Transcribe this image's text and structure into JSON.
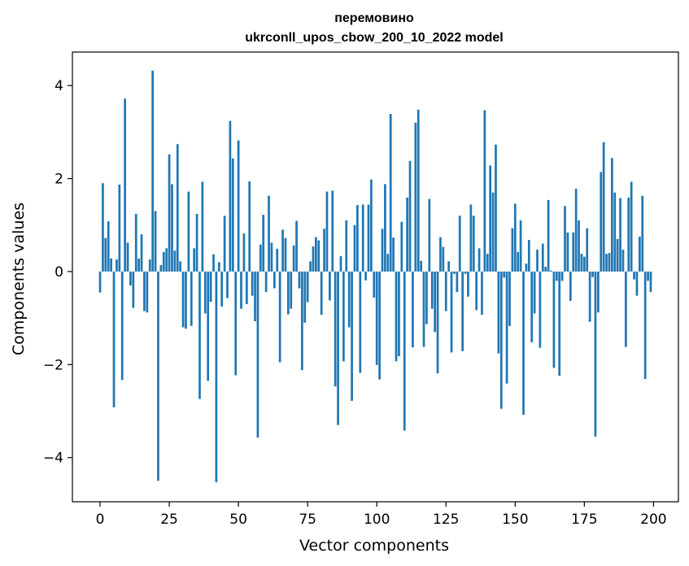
{
  "chart_data": {
    "type": "bar",
    "title": "перемовино",
    "subtitle": "ukrconll_upos_cbow_200_10_2022 model",
    "xlabel": "Vector components",
    "ylabel": "Components values",
    "xlim": [
      -10,
      209
    ],
    "ylim": [
      -4.95,
      4.72
    ],
    "xticks": [
      0,
      25,
      50,
      75,
      100,
      125,
      150,
      175,
      200
    ],
    "yticks": [
      -4,
      -2,
      0,
      2,
      4
    ],
    "xtick_labels": [
      "0",
      "25",
      "50",
      "75",
      "100",
      "125",
      "150",
      "175",
      "200"
    ],
    "ytick_labels": [
      "−4",
      "−2",
      "0",
      "2",
      "4"
    ],
    "bar_color": "#1f77b4",
    "grid": false,
    "x": [
      0,
      1,
      2,
      3,
      4,
      5,
      6,
      7,
      8,
      9,
      10,
      11,
      12,
      13,
      14,
      15,
      16,
      17,
      18,
      19,
      20,
      21,
      22,
      23,
      24,
      25,
      26,
      27,
      28,
      29,
      30,
      31,
      32,
      33,
      34,
      35,
      36,
      37,
      38,
      39,
      40,
      41,
      42,
      43,
      44,
      45,
      46,
      47,
      48,
      49,
      50,
      51,
      52,
      53,
      54,
      55,
      56,
      57,
      58,
      59,
      60,
      61,
      62,
      63,
      64,
      65,
      66,
      67,
      68,
      69,
      70,
      71,
      72,
      73,
      74,
      75,
      76,
      77,
      78,
      79,
      80,
      81,
      82,
      83,
      84,
      85,
      86,
      87,
      88,
      89,
      90,
      91,
      92,
      93,
      94,
      95,
      96,
      97,
      98,
      99,
      100,
      101,
      102,
      103,
      104,
      105,
      106,
      107,
      108,
      109,
      110,
      111,
      112,
      113,
      114,
      115,
      116,
      117,
      118,
      119,
      120,
      121,
      122,
      123,
      124,
      125,
      126,
      127,
      128,
      129,
      130,
      131,
      132,
      133,
      134,
      135,
      136,
      137,
      138,
      139,
      140,
      141,
      142,
      143,
      144,
      145,
      146,
      147,
      148,
      149,
      150,
      151,
      152,
      153,
      154,
      155,
      156,
      157,
      158,
      159,
      160,
      161,
      162,
      163,
      164,
      165,
      166,
      167,
      168,
      169,
      170,
      171,
      172,
      173,
      174,
      175,
      176,
      177,
      178,
      179,
      180,
      181,
      182,
      183,
      184,
      185,
      186,
      187,
      188,
      189,
      190,
      191,
      192,
      193,
      194,
      195,
      196,
      197,
      198,
      199
    ],
    "values": [
      -0.45,
      1.9,
      0.72,
      1.08,
      0.28,
      -2.92,
      0.26,
      1.87,
      -2.33,
      3.72,
      0.62,
      -0.3,
      -0.78,
      1.24,
      0.28,
      0.8,
      -0.85,
      -0.88,
      0.26,
      4.32,
      1.3,
      -4.5,
      0.14,
      0.42,
      0.5,
      2.52,
      1.88,
      0.45,
      2.74,
      0.22,
      -1.2,
      -1.23,
      1.72,
      -1.17,
      0.5,
      1.24,
      -2.74,
      1.93,
      -0.9,
      -2.35,
      -0.65,
      0.37,
      -4.53,
      0.2,
      -0.75,
      1.2,
      -0.57,
      3.24,
      2.43,
      -2.23,
      2.82,
      -0.8,
      0.82,
      -0.7,
      1.94,
      -0.52,
      -1.07,
      -3.57,
      0.58,
      1.22,
      -0.44,
      1.63,
      0.62,
      -0.36,
      0.49,
      -1.95,
      0.9,
      0.72,
      -0.92,
      -0.8,
      0.56,
      1.09,
      -0.36,
      -2.12,
      -1.1,
      -0.66,
      0.22,
      0.54,
      0.74,
      0.67,
      -0.93,
      0.92,
      1.72,
      -0.62,
      1.74,
      -2.47,
      -3.3,
      0.33,
      -1.93,
      1.1,
      -1.2,
      -2.78,
      1.0,
      1.43,
      -2.18,
      1.44,
      -0.19,
      1.44,
      1.98,
      -0.56,
      -2.01,
      -2.32,
      0.92,
      1.88,
      0.38,
      3.39,
      0.73,
      -1.93,
      -1.82,
      1.07,
      -3.42,
      1.59,
      2.38,
      -1.63,
      3.2,
      3.48,
      0.23,
      -1.62,
      -1.13,
      1.56,
      -0.8,
      -1.3,
      -2.19,
      0.74,
      0.53,
      -0.85,
      0.22,
      -1.74,
      -0.05,
      -0.44,
      1.2,
      -1.71,
      -0.05,
      -0.54,
      1.44,
      1.2,
      -0.83,
      0.5,
      -0.93,
      3.47,
      0.38,
      2.28,
      1.7,
      2.73,
      -1.76,
      -2.95,
      -0.13,
      -2.41,
      -1.17,
      0.93,
      1.46,
      0.42,
      1.1,
      -3.08,
      0.17,
      0.68,
      -1.52,
      -0.9,
      0.47,
      -1.64,
      0.6,
      0.1,
      1.54,
      0.02,
      -2.07,
      -0.2,
      -2.24,
      -0.2,
      1.41,
      0.84,
      -0.63,
      0.84,
      1.78,
      1.1,
      0.38,
      0.32,
      0.93,
      -1.08,
      -0.12,
      -3.55,
      -0.88,
      2.14,
      2.78,
      0.38,
      0.4,
      2.44,
      1.7,
      0.7,
      1.58,
      0.47,
      -1.62,
      1.59,
      1.93,
      -0.17,
      -0.52,
      0.75,
      1.63,
      -2.31,
      -0.2,
      -0.44
    ]
  }
}
